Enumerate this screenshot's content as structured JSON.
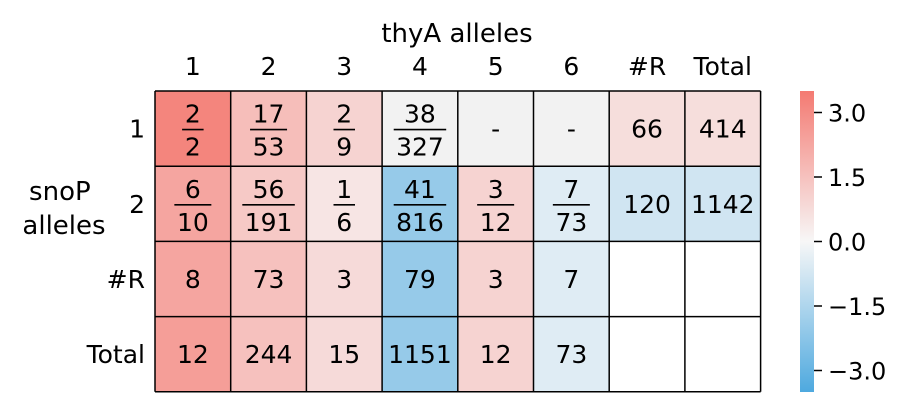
{
  "chart_data": {
    "type": "heatmap",
    "title": "",
    "xlabel": "thyA alleles",
    "ylabel": "snoP alleles",
    "x_categories": [
      "1",
      "2",
      "3",
      "4",
      "5",
      "6",
      "#R",
      "Total"
    ],
    "y_categories": [
      "1",
      "2",
      "#R",
      "Total"
    ],
    "cells": [
      [
        {
          "num": "2",
          "den": "2",
          "color_value": 3.2
        },
        {
          "num": "17",
          "den": "53",
          "color_value": 1.6
        },
        {
          "num": "2",
          "den": "9",
          "color_value": 1.0
        },
        {
          "num": "38",
          "den": "327",
          "color_value": null,
          "color": "#f2f2f2"
        },
        {
          "text": "-",
          "color_value": null,
          "color": "#f2f2f2"
        },
        {
          "text": "-",
          "color_value": null,
          "color": "#f2f2f2"
        },
        {
          "text": "66",
          "color_value": 0.7
        },
        {
          "text": "414",
          "color_value": 0.7
        }
      ],
      [
        {
          "num": "6",
          "den": "10",
          "color_value": 2.3
        },
        {
          "num": "56",
          "den": "191",
          "color_value": 1.3
        },
        {
          "num": "1",
          "den": "6",
          "color_value": 0.5
        },
        {
          "num": "41",
          "den": "816",
          "color_value": -2.0
        },
        {
          "num": "3",
          "den": "12",
          "color_value": 1.0
        },
        {
          "num": "7",
          "den": "73",
          "color_value": -0.5
        },
        {
          "text": "120",
          "color_value": -0.8
        },
        {
          "text": "1142",
          "color_value": -0.8
        }
      ],
      [
        {
          "text": "8",
          "color_value": 2.3
        },
        {
          "text": "73",
          "color_value": 1.5
        },
        {
          "text": "3",
          "color_value": 0.8
        },
        {
          "text": "79",
          "color_value": -2.0
        },
        {
          "text": "3",
          "color_value": 1.0
        },
        {
          "text": "7",
          "color_value": -0.5
        },
        {
          "text": "",
          "color_value": null,
          "color": "#ffffff"
        },
        {
          "text": "",
          "color_value": null,
          "color": "#ffffff"
        }
      ],
      [
        {
          "text": "12",
          "color_value": 2.5
        },
        {
          "text": "244",
          "color_value": 1.5
        },
        {
          "text": "15",
          "color_value": 0.8
        },
        {
          "text": "1151",
          "color_value": -2.0
        },
        {
          "text": "12",
          "color_value": 1.0
        },
        {
          "text": "73",
          "color_value": -0.5
        },
        {
          "text": "",
          "color_value": null,
          "color": "#ffffff"
        },
        {
          "text": "",
          "color_value": null,
          "color": "#ffffff"
        }
      ]
    ],
    "colorbar": {
      "range": [
        -3.5,
        3.5
      ],
      "ticks": [
        3.0,
        1.5,
        0.0,
        -1.5,
        -3.0
      ],
      "tick_labels": [
        "3.0",
        "1.5",
        "0.0",
        "−1.5",
        "−3.0"
      ],
      "colors": {
        "high": "#f47a72",
        "mid": "#f7f7f7",
        "low": "#4ea9df"
      }
    }
  }
}
